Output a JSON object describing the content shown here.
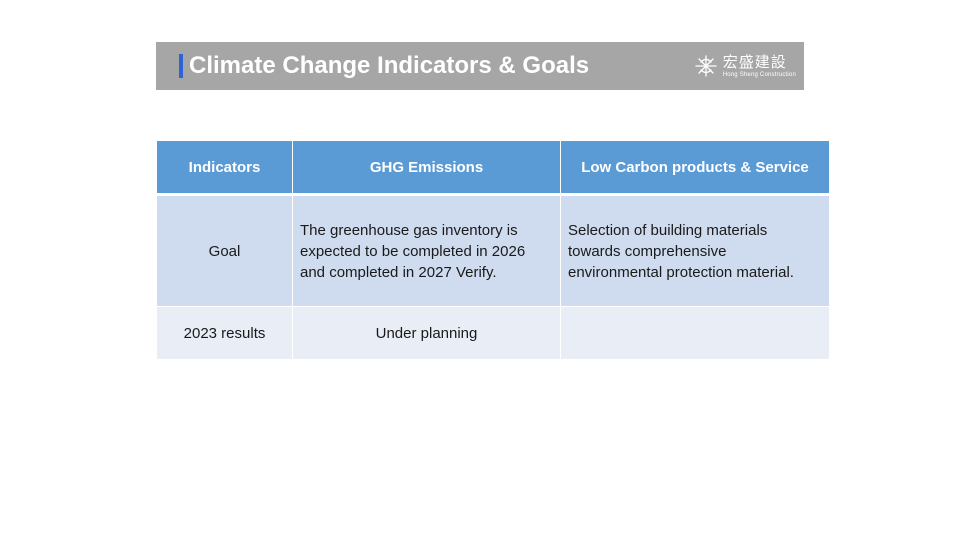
{
  "header": {
    "title": "Climate Change Indicators & Goals",
    "accent_color": "#2e63d6",
    "background_color": "#a6a6a6"
  },
  "logo": {
    "icon": "hong-sheng-logo-icon",
    "chinese_name": "宏盛建設",
    "english_name": "Hong Sheng Construction"
  },
  "table": {
    "header_color": "#5b9bd5",
    "headers": [
      "Indicators",
      "GHG Emissions",
      "Low Carbon products & Service"
    ],
    "rows": [
      {
        "label": "Goal",
        "ghg": "The greenhouse gas inventory is expected to be completed in 2026 and completed in 2027 Verify.",
        "low_carbon": "Selection of building materials towards comprehensive environmental protection material."
      },
      {
        "label": "2023 results",
        "ghg": "Under planning",
        "low_carbon": ""
      }
    ]
  }
}
